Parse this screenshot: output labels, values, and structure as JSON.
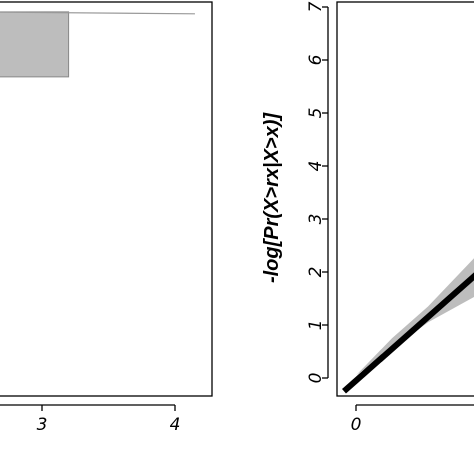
{
  "chart_data": [
    {
      "type": "line",
      "panel": "left",
      "title": "",
      "xlabel": "",
      "ylabel": "",
      "xlim": [
        0.0,
        4.5
      ],
      "x_ticks": [
        "3",
        "4"
      ],
      "x_tick_values": [
        3,
        4
      ],
      "series": [
        {
          "kind": "reference-line",
          "x": [
            0.0,
            0.72
          ],
          "y": [
            0.885,
            1.06
          ]
        },
        {
          "kind": "step-band",
          "x": [
            0.0,
            0.15,
            0.15,
            1.15,
            1.15,
            1.75,
            1.75,
            2.4,
            2.4,
            3.2
          ],
          "y": [
            0.81,
            0.81,
            0.85,
            0.85,
            0.885,
            0.885,
            0.925,
            0.925,
            0.975,
            0.975
          ]
        },
        {
          "kind": "upper-trace",
          "x": [
            2.4,
            4.15
          ],
          "y": [
            0.975,
            0.97
          ]
        }
      ],
      "colors": {
        "band_fill": "#bdbdbd",
        "band_edge": "#888888",
        "line": "#000000",
        "trace": "#999999"
      }
    },
    {
      "type": "line",
      "panel": "right",
      "title": "",
      "xlabel": "",
      "ylabel": "-log[Pr(X>rx|X>x)]",
      "ylim": [
        0,
        7
      ],
      "x_ticks": [
        "0"
      ],
      "x_tick_values": [
        0
      ],
      "y_ticks": [
        "0",
        "1",
        "2",
        "3",
        "4",
        "5",
        "6",
        "7"
      ],
      "y_tick_values": [
        0,
        1,
        2,
        3,
        4,
        5,
        6,
        7
      ],
      "series": [
        {
          "kind": "reference-line",
          "x": [
            -0.1,
            1.0
          ],
          "y": [
            -0.25,
            1.95
          ]
        },
        {
          "kind": "confidence-band",
          "x": [
            0.0,
            0.3,
            0.6,
            1.0
          ],
          "lower": [
            0.05,
            0.55,
            1.05,
            1.55
          ],
          "upper": [
            0.05,
            0.75,
            1.35,
            2.3
          ]
        }
      ],
      "colors": {
        "band_fill": "#bdbdbd",
        "line": "#000000"
      }
    }
  ]
}
